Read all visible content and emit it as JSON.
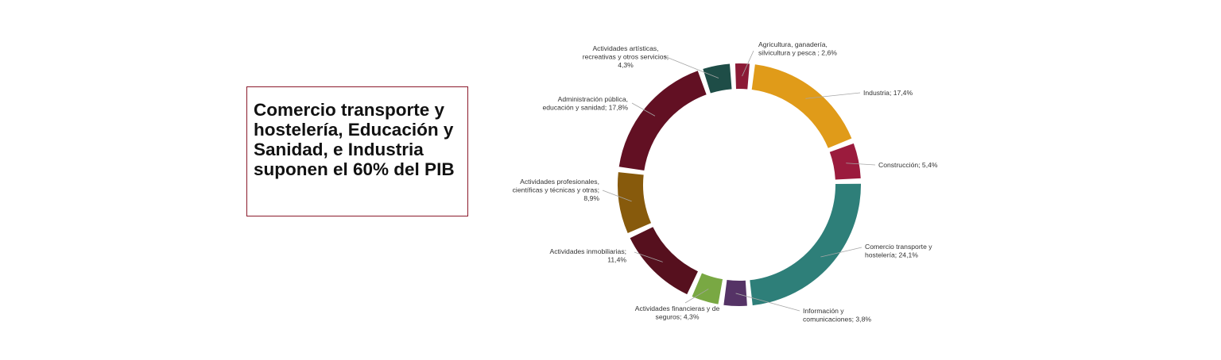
{
  "headline": "Comercio transporte y hostelería, Educación y Sanidad, e Industria suponen el 60% del PIB",
  "chart_data": {
    "type": "pie",
    "style": "donut",
    "slices": [
      {
        "label_lines": [
          "Agricultura, ganadería,",
          "silvicultura y pesca ; 2,6%"
        ],
        "value": 2.6,
        "color": "#8b1a36"
      },
      {
        "label_lines": [
          "Industria; 17,4%"
        ],
        "value": 17.4,
        "color": "#e09b19"
      },
      {
        "label_lines": [
          "Construcción; 5,4%"
        ],
        "value": 5.4,
        "color": "#9b1b3d"
      },
      {
        "label_lines": [
          "Comercio transporte y",
          "hostelería; 24,1%"
        ],
        "value": 24.1,
        "color": "#2e7f79"
      },
      {
        "label_lines": [
          "Información y",
          "comunicaciones; 3,8%"
        ],
        "value": 3.8,
        "color": "#553366"
      },
      {
        "label_lines": [
          "Actividades financieras y de",
          "seguros; 4,3%"
        ],
        "value": 4.3,
        "color": "#79a843"
      },
      {
        "label_lines": [
          "Actividades inmobiliarias;",
          "11,4%"
        ],
        "value": 11.4,
        "color": "#56101e"
      },
      {
        "label_lines": [
          "Actividades profesionales,",
          "científicas y técnicas y otras;",
          "8,9%"
        ],
        "value": 8.9,
        "color": "#875a0c"
      },
      {
        "label_lines": [
          "Administración pública,",
          "educación y sanidad; 17,8%"
        ],
        "value": 17.8,
        "color": "#621023"
      },
      {
        "label_lines": [
          "Actividades artísticas,",
          "recreativas y otros servicios;",
          "4,3%"
        ],
        "value": 4.3,
        "color": "#1e4d47"
      }
    ]
  }
}
